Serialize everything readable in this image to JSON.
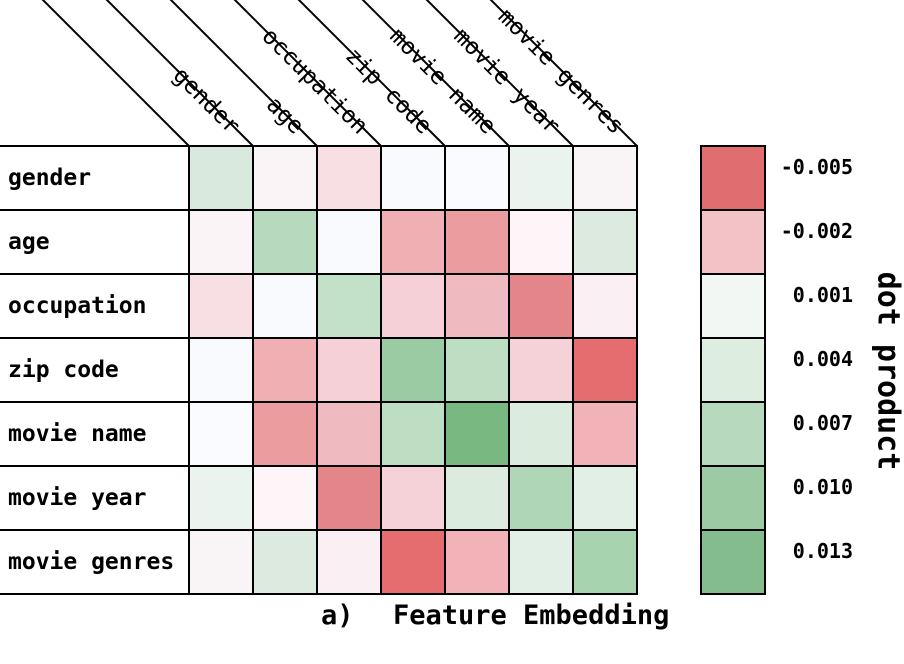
{
  "figure": {
    "caption_prefix": "a)",
    "caption_title": "Feature Embedding",
    "colorbar_title": "dot product"
  },
  "chart_data": {
    "type": "heatmap",
    "title": "Feature Embedding",
    "rows": [
      "gender",
      "age",
      "occupation",
      "zip code",
      "movie name",
      "movie year",
      "movie genres"
    ],
    "columns": [
      "gender",
      "age",
      "occupation",
      "zip code",
      "movie name",
      "movie year",
      "movie genres"
    ],
    "values": [
      [
        0.005,
        0.0005,
        -0.001,
        0.001,
        0.001,
        0.0025,
        0.0005
      ],
      [
        0.0005,
        0.007,
        0.001,
        -0.003,
        -0.0035,
        0.0005,
        0.004
      ],
      [
        -0.001,
        0.001,
        0.006,
        -0.0015,
        -0.0025,
        -0.0045,
        0.0005
      ],
      [
        0.001,
        -0.003,
        -0.0015,
        0.01,
        0.0065,
        -0.0015,
        -0.0055
      ],
      [
        0.001,
        -0.0035,
        -0.0025,
        0.0065,
        0.0135,
        0.0045,
        -0.003
      ],
      [
        0.0025,
        0.0005,
        -0.0045,
        -0.0015,
        0.0045,
        0.008,
        0.0035
      ],
      [
        0.0005,
        0.004,
        0.0005,
        -0.0055,
        -0.003,
        0.0035,
        0.009
      ]
    ],
    "cell_colors": [
      [
        "#d9e9dd",
        "#fbf4f7",
        "#f8dfe4",
        "#f9fafe",
        "#fafbfe",
        "#eaf3ee",
        "#f9f4f6"
      ],
      [
        "#fbf4f7",
        "#b7d9bd",
        "#f8fafd",
        "#efafb3",
        "#ea9c9f",
        "#fdf5f8",
        "#dceae0"
      ],
      [
        "#f8dfe4",
        "#f8fafd",
        "#c3e0c8",
        "#f5d0d7",
        "#f0bbc0",
        "#e48689",
        "#faf0f3"
      ],
      [
        "#f9fafe",
        "#efafb3",
        "#f5d0d7",
        "#9bcba2",
        "#bedec3",
        "#f4d2d8",
        "#e56d6f"
      ],
      [
        "#fafbfe",
        "#ea9c9f",
        "#f0bbc0",
        "#bedec3",
        "#7ab881",
        "#dbecdf",
        "#f1b3b8"
      ],
      [
        "#eaf3ee",
        "#fdf5f8",
        "#e48689",
        "#f4d2d8",
        "#dbecdf",
        "#afd6b6",
        "#e2efe6"
      ],
      [
        "#f9f4f6",
        "#dceae0",
        "#faf0f3",
        "#e56d6f",
        "#f1b3b8",
        "#e2efe6",
        "#a8d3af"
      ]
    ],
    "grid": true,
    "grid_color": "#000000",
    "legend": {
      "position": "right",
      "title": "dot product",
      "ticks": [
        -0.005,
        -0.002,
        0.001,
        0.004,
        0.007,
        0.01,
        0.013
      ],
      "tick_labels": [
        "-0.005",
        "-0.002",
        "0.001",
        "0.004",
        "0.007",
        "0.010",
        "0.013"
      ],
      "colors": [
        "#e06d6f",
        "#f2c2c7",
        "#f2f7f3",
        "#ddeee1",
        "#b7d9bd",
        "#9ccaa3",
        "#84bc8d"
      ]
    },
    "caption": "a)   Feature Embedding"
  }
}
